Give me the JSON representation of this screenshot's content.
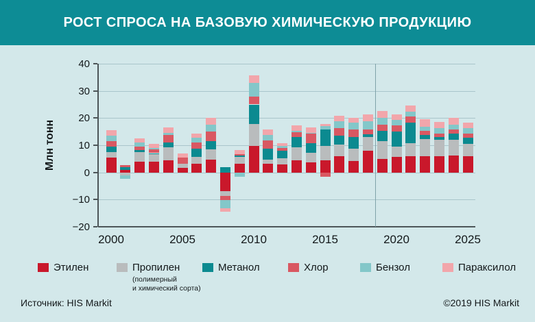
{
  "header": {
    "title": "РОСТ СПРОСА НА БАЗОВУЮ ХИМИЧЕСКУЮ ПРОДУКЦИЮ"
  },
  "footer": {
    "source": "Источник: HIS Markit",
    "copyright": "©2019 HIS Markit"
  },
  "colors": {
    "header_bg": "#0d8c95",
    "page_bg": "#d3e8ea",
    "grid": "#a9c5cb",
    "spine": "#4c5558",
    "divider": "#7fa2a9",
    "text": "#13181a",
    "title_text": "#ffffff"
  },
  "chart_data": {
    "type": "bar",
    "stacked": true,
    "title": "РОСТ СПРОСА НА БАЗОВУЮ ХИМИЧЕСКУЮ ПРОДУКЦИЮ",
    "xlabel": "",
    "ylabel": "Млн тонн",
    "ylim": [
      -20,
      40
    ],
    "yticks": [
      40,
      30,
      20,
      10,
      0,
      -10,
      -20
    ],
    "xticks": [
      2000,
      2005,
      2010,
      2015,
      2020,
      2025
    ],
    "grid": true,
    "legend_position": "bottom",
    "forecast_divider_between": [
      2018,
      2019
    ],
    "years": [
      2000,
      2001,
      2002,
      2003,
      2004,
      2005,
      2006,
      2007,
      2008,
      2009,
      2010,
      2011,
      2012,
      2013,
      2014,
      2015,
      2016,
      2017,
      2018,
      2019,
      2020,
      2021,
      2022,
      2023,
      2024,
      2025
    ],
    "units": "млн тонн",
    "series": [
      {
        "name": "Этилен",
        "color": "#c9182b",
        "values": [
          5.5,
          1.0,
          4.0,
          4.0,
          4.4,
          1.6,
          3.3,
          4.6,
          -7.0,
          3.2,
          9.8,
          3.3,
          3.0,
          4.5,
          3.6,
          4.5,
          5.9,
          4.3,
          8.0,
          5.0,
          5.7,
          5.9,
          6.0,
          5.9,
          6.2,
          5.9
        ]
      },
      {
        "name": "Пропилен",
        "note_line1": "(полимерный",
        "note_line2": "и химический сорта)",
        "color": "#b9bcbd",
        "values": [
          2.0,
          -1.2,
          3.5,
          2.7,
          4.9,
          1.6,
          2.4,
          3.8,
          -1.7,
          2.6,
          8.0,
          1.5,
          2.1,
          4.8,
          3.7,
          5.2,
          4.3,
          4.5,
          4.9,
          6.4,
          3.9,
          4.9,
          6.3,
          6.0,
          5.9,
          4.7
        ]
      },
      {
        "name": "Метанол",
        "color": "#0b8a90",
        "values": [
          2.0,
          1.0,
          0.8,
          0.4,
          1.7,
          0.0,
          3.1,
          3.1,
          2.0,
          0.4,
          7.2,
          4.0,
          2.8,
          3.6,
          3.4,
          6.0,
          3.4,
          4.2,
          1.2,
          4.0,
          5.4,
          7.5,
          1.4,
          1.2,
          2.2,
          2.2
        ]
      },
      {
        "name": "Хлор",
        "color": "#d95862",
        "values": [
          2.0,
          0.8,
          1.2,
          1.4,
          2.7,
          2.2,
          2.2,
          3.5,
          -1.5,
          0.6,
          3.0,
          3.0,
          1.0,
          1.9,
          3.6,
          -1.7,
          2.8,
          2.8,
          1.7,
          2.1,
          2.4,
          2.2,
          1.5,
          1.3,
          1.5,
          1.5
        ]
      },
      {
        "name": "Бензол",
        "color": "#83c7c9",
        "values": [
          2.0,
          -1.2,
          1.5,
          0.6,
          0.8,
          0.0,
          1.7,
          2.6,
          -2.9,
          -1.5,
          5.0,
          2.0,
          0.9,
          0.5,
          0.3,
          1.4,
          2.4,
          2.4,
          2.9,
          2.6,
          1.9,
          1.9,
          1.6,
          2.0,
          1.7,
          2.0
        ]
      },
      {
        "name": "Параксилол",
        "color": "#f2a6ab",
        "values": [
          2.0,
          0.0,
          1.5,
          1.4,
          2.0,
          1.6,
          1.6,
          2.6,
          -1.3,
          1.5,
          2.8,
          2.0,
          1.0,
          1.9,
          1.9,
          0.6,
          2.0,
          1.9,
          2.6,
          2.4,
          2.0,
          2.3,
          2.9,
          2.2,
          2.6,
          2.1
        ]
      }
    ]
  },
  "legend_x_positions": [
    55,
    170,
    295,
    420,
    525,
    645
  ]
}
